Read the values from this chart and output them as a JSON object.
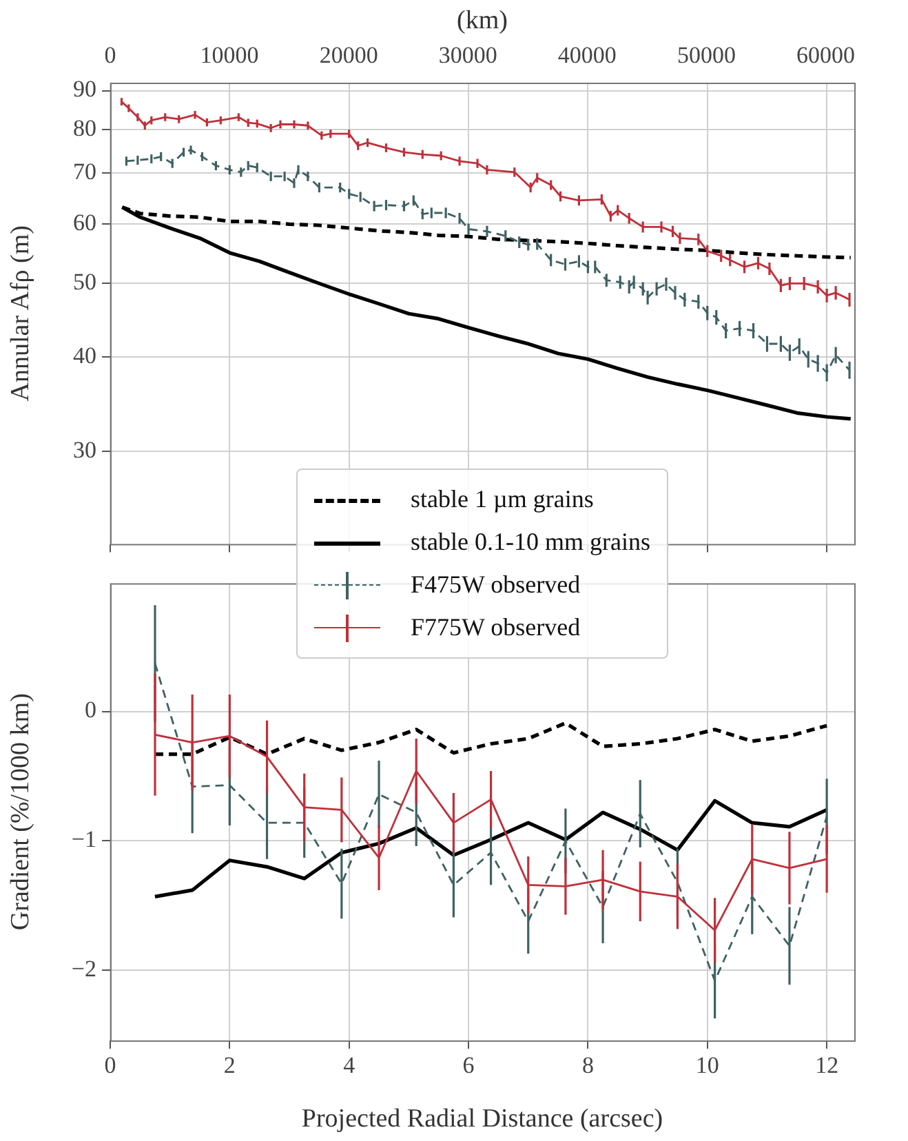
{
  "chart_data": [
    {
      "type": "line",
      "ylabel": "Annular Afρ (m)",
      "x2label": "(km)",
      "log": "y",
      "grid": true,
      "legend": "bottom",
      "tick_labels": "y",
      "xlim": [
        0,
        12.46
      ],
      "xticks": [
        0,
        2,
        4,
        6,
        8,
        10,
        12
      ],
      "x2lim": [
        0,
        62400
      ],
      "x2ticks": [
        0,
        10000,
        20000,
        30000,
        40000,
        50000,
        60000
      ],
      "ylim": [
        22.6,
        92.2
      ],
      "yticks": [
        30,
        40,
        50,
        60,
        70,
        80,
        90
      ],
      "series": [
        {
          "name": "stable 1 µm grains",
          "color": "#000000",
          "line_style": "dashed",
          "x": [
            0.2,
            0.5,
            1.0,
            1.5,
            2.0,
            2.5,
            3.0,
            3.5,
            4.0,
            4.5,
            5.0,
            5.5,
            6.0,
            6.5,
            7.0,
            7.5,
            8.0,
            8.5,
            9.0,
            9.5,
            10.0,
            10.5,
            11.0,
            11.5,
            12.0,
            12.4
          ],
          "values": [
            63.1,
            61.9,
            61.4,
            61.2,
            60.4,
            60.4,
            59.9,
            59.7,
            59.2,
            58.7,
            58.4,
            57.9,
            57.7,
            57.2,
            57.0,
            56.8,
            56.5,
            56.1,
            55.8,
            55.5,
            55.3,
            54.9,
            54.6,
            54.4,
            54.2,
            54.1
          ]
        },
        {
          "name": "stable 0.1-10 mm grains",
          "color": "#000000",
          "line_style": "solid",
          "x": [
            0.2,
            0.5,
            1.0,
            1.5,
            2.0,
            2.5,
            3.0,
            3.5,
            4.0,
            4.5,
            5.0,
            5.5,
            6.0,
            6.5,
            7.0,
            7.5,
            8.0,
            8.5,
            9.0,
            9.5,
            10.0,
            10.5,
            11.0,
            11.5,
            12.0,
            12.4
          ],
          "values": [
            63.1,
            61.2,
            59.2,
            57.4,
            54.9,
            53.5,
            51.7,
            50.0,
            48.4,
            47.0,
            45.6,
            44.9,
            43.7,
            42.6,
            41.6,
            40.4,
            39.7,
            38.6,
            37.6,
            36.8,
            36.1,
            35.3,
            34.5,
            33.7,
            33.3,
            33.1
          ]
        },
        {
          "name": "F475W observed",
          "color": "#3f6163",
          "line_style": "dashed",
          "x": [
            0.27,
            0.46,
            0.69,
            0.85,
            1.04,
            1.23,
            1.35,
            1.54,
            1.77,
            2.0,
            2.19,
            2.31,
            2.46,
            2.69,
            2.92,
            3.08,
            3.15,
            3.31,
            3.5,
            3.85,
            4.0,
            4.19,
            4.42,
            4.62,
            4.92,
            5.08,
            5.23,
            5.38,
            5.62,
            5.85,
            6.0,
            6.31,
            6.62,
            6.85,
            7.0,
            7.15,
            7.38,
            7.62,
            7.85,
            8.0,
            8.12,
            8.31,
            8.54,
            8.69,
            8.77,
            8.92,
            9.0,
            9.15,
            9.31,
            9.46,
            9.62,
            9.85,
            10.0,
            10.15,
            10.31,
            10.54,
            10.77,
            11.0,
            11.23,
            11.38,
            11.54,
            11.69,
            11.85,
            12.0,
            12.15,
            12.38
          ],
          "values": [
            72.6,
            72.8,
            73.1,
            73.6,
            72.1,
            74.6,
            75.1,
            73.6,
            71.6,
            70.7,
            70.2,
            71.6,
            71.2,
            69.3,
            69.3,
            67.9,
            70.7,
            69.3,
            67.0,
            67.0,
            65.7,
            65.1,
            63.3,
            63.5,
            63.3,
            64.4,
            61.8,
            62.0,
            62.0,
            61.0,
            59.0,
            58.6,
            57.8,
            56.7,
            56.3,
            56.4,
            53.7,
            53.0,
            53.5,
            52.6,
            52.6,
            50.5,
            50.2,
            49.5,
            50.2,
            49.2,
            47.9,
            49.2,
            49.9,
            48.6,
            47.6,
            47.3,
            45.7,
            45.1,
            43.3,
            43.6,
            43.3,
            41.6,
            41.6,
            40.5,
            41.3,
            39.7,
            39.2,
            38.1,
            40.2,
            38.4
          ],
          "errors": [
            1,
            1,
            1,
            1,
            1,
            1,
            1,
            1,
            1,
            1,
            1,
            1,
            1,
            1,
            1,
            1,
            1,
            1,
            1,
            1,
            1,
            1,
            1,
            1,
            1,
            1,
            1,
            1,
            1,
            1,
            1,
            1,
            1,
            1,
            1,
            1,
            1,
            1,
            1,
            1,
            1,
            1,
            1,
            1,
            1,
            1,
            1,
            1,
            1,
            1,
            1,
            1,
            1,
            1,
            1,
            1,
            1,
            1,
            1,
            1,
            1,
            1,
            1,
            1,
            1,
            1
          ]
        },
        {
          "name": "F775W observed",
          "color": "#c0303a",
          "line_style": "solid",
          "x": [
            0.19,
            0.31,
            0.46,
            0.58,
            0.69,
            0.92,
            1.15,
            1.42,
            1.62,
            1.85,
            2.15,
            2.31,
            2.46,
            2.69,
            2.85,
            3.08,
            3.31,
            3.54,
            3.69,
            4.0,
            4.15,
            4.31,
            4.62,
            4.92,
            5.23,
            5.54,
            5.85,
            6.15,
            6.31,
            6.77,
            7.04,
            7.15,
            7.38,
            7.54,
            7.85,
            8.23,
            8.38,
            8.5,
            8.69,
            8.92,
            9.23,
            9.42,
            9.54,
            9.85,
            10.0,
            10.23,
            10.38,
            10.62,
            10.85,
            11.04,
            11.23,
            11.38,
            11.62,
            11.85,
            12.0,
            12.15,
            12.38
          ],
          "values": [
            87.0,
            85.3,
            83.0,
            80.9,
            82.2,
            83.0,
            82.5,
            83.6,
            81.7,
            82.2,
            83.0,
            81.6,
            81.4,
            80.3,
            81.2,
            81.2,
            80.9,
            78.5,
            78.9,
            78.9,
            76.1,
            76.8,
            75.6,
            74.6,
            74.1,
            73.8,
            72.6,
            72.1,
            70.7,
            70.2,
            67.0,
            69.0,
            67.5,
            65.2,
            64.4,
            64.6,
            61.4,
            62.5,
            61.0,
            59.4,
            59.4,
            58.6,
            57.4,
            57.2,
            55.2,
            54.4,
            53.7,
            52.6,
            53.2,
            52.3,
            49.7,
            50.0,
            50.0,
            49.5,
            48.2,
            48.6,
            47.6
          ],
          "errors": [
            1,
            1,
            1,
            1,
            1,
            1,
            1,
            1,
            1,
            1,
            1,
            1,
            1,
            1,
            1,
            1,
            1,
            1,
            1,
            1,
            1,
            1,
            1,
            1,
            1,
            1,
            1,
            1,
            1,
            1,
            1,
            1,
            1,
            1,
            1,
            1,
            1,
            1,
            1,
            1,
            1,
            1,
            1,
            1,
            1,
            1,
            1,
            1,
            1,
            1,
            1,
            1,
            1,
            1,
            1,
            1,
            1
          ]
        }
      ]
    },
    {
      "type": "line",
      "xlabel": "Projected Radial Distance (arcsec)",
      "ylabel": "Gradient (%/1000 km)",
      "grid": true,
      "xlim": [
        0,
        12.46
      ],
      "xticks": [
        0,
        2,
        4,
        6,
        8,
        10,
        12
      ],
      "ylim": [
        -2.54,
        0.99
      ],
      "yticks": [
        {
          "value": -2,
          "label": "−2"
        },
        {
          "value": -1,
          "label": "−1"
        },
        0
      ],
      "x": [
        0.75,
        1.375,
        2.0,
        2.625,
        3.25,
        3.875,
        4.5,
        5.125,
        5.75,
        6.375,
        7.0,
        7.625,
        8.25,
        8.875,
        9.5,
        10.125,
        10.75,
        11.375,
        12.0
      ],
      "series": [
        {
          "color": "#000000",
          "line_style": "dashed",
          "values": [
            -0.33,
            -0.33,
            -0.2,
            -0.33,
            -0.21,
            -0.3,
            -0.24,
            -0.14,
            -0.32,
            -0.25,
            -0.21,
            -0.09,
            -0.27,
            -0.25,
            -0.21,
            -0.14,
            -0.23,
            -0.19,
            -0.11
          ]
        },
        {
          "color": "#000000",
          "line_style": "solid",
          "values": [
            -1.43,
            -1.38,
            -1.15,
            -1.2,
            -1.29,
            -1.09,
            -1.02,
            -0.9,
            -1.11,
            -0.99,
            -0.86,
            -0.99,
            -0.78,
            -0.91,
            -1.07,
            -0.69,
            -0.86,
            -0.89,
            -0.76
          ]
        },
        {
          "color": "#3f6163",
          "line_style": "dashed",
          "values": [
            0.37,
            -0.58,
            -0.57,
            -0.86,
            -0.86,
            -1.33,
            -0.64,
            -0.78,
            -1.34,
            -1.09,
            -1.62,
            -1.0,
            -1.51,
            -0.79,
            -1.32,
            -2.08,
            -1.43,
            -1.81,
            -0.81
          ],
          "errors": [
            0.45,
            0.36,
            0.31,
            0.28,
            0.27,
            0.27,
            0.26,
            0.26,
            0.25,
            0.25,
            0.25,
            0.25,
            0.28,
            0.26,
            0.26,
            0.29,
            0.29,
            0.3,
            0.29
          ]
        },
        {
          "color": "#c0303a",
          "line_style": "solid",
          "values": [
            -0.18,
            -0.24,
            -0.19,
            -0.35,
            -0.74,
            -0.76,
            -1.13,
            -0.46,
            -0.86,
            -0.68,
            -1.34,
            -1.35,
            -1.3,
            -1.39,
            -1.43,
            -1.69,
            -1.14,
            -1.21,
            -1.14
          ],
          "errors": [
            0.47,
            0.37,
            0.32,
            0.28,
            0.26,
            0.25,
            0.25,
            0.25,
            0.23,
            0.22,
            0.22,
            0.22,
            0.23,
            0.23,
            0.25,
            0.25,
            0.27,
            0.28,
            0.26
          ]
        }
      ]
    }
  ]
}
